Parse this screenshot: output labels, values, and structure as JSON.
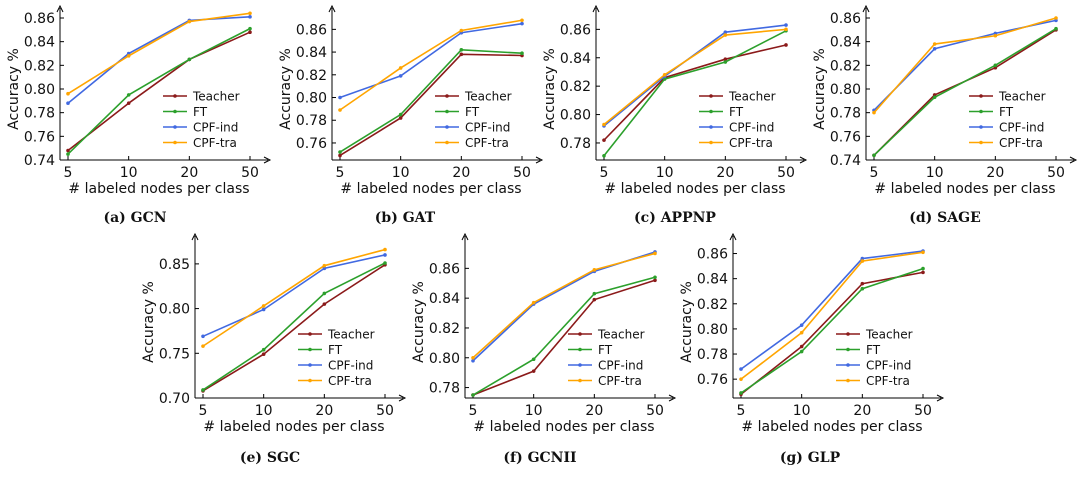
{
  "styles": {
    "series_colors": {
      "Teacher": "#8b1a1a",
      "FT": "#2ca02c",
      "CPF-ind": "#4169e1",
      "CPF-tra": "#ffa500"
    },
    "axis_color": "#000000"
  },
  "legend_labels": [
    "Teacher",
    "FT",
    "CPF-ind",
    "CPF-tra"
  ],
  "chart_data": [
    {
      "id": "a",
      "caption": "(a) GCN",
      "type": "line",
      "xlabel": "# labeled nodes per class",
      "ylabel": "Accuracy %",
      "categories": [
        "5",
        "10",
        "20",
        "50"
      ],
      "ylim": [
        0.74,
        0.86
      ],
      "yticks": [
        0.74,
        0.76,
        0.78,
        0.8,
        0.82,
        0.84,
        0.86
      ],
      "ytick_labels": [
        "0.74",
        "0.76",
        "0.78",
        "0.80",
        "0.82",
        "0.84",
        "0.86"
      ],
      "legend_position": "lower-right",
      "series": [
        {
          "name": "Teacher",
          "values": [
            0.748,
            0.788,
            0.825,
            0.848
          ]
        },
        {
          "name": "FT",
          "values": [
            0.745,
            0.795,
            0.825,
            0.851
          ]
        },
        {
          "name": "CPF-ind",
          "values": [
            0.788,
            0.83,
            0.858,
            0.861
          ]
        },
        {
          "name": "CPF-tra",
          "values": [
            0.796,
            0.828,
            0.857,
            0.864
          ]
        }
      ]
    },
    {
      "id": "b",
      "caption": "(b) GAT",
      "type": "line",
      "xlabel": "# labeled nodes per class",
      "ylabel": "Accuracy %",
      "categories": [
        "5",
        "10",
        "20",
        "50"
      ],
      "ylim": [
        0.745,
        0.87
      ],
      "yticks": [
        0.76,
        0.78,
        0.8,
        0.82,
        0.84,
        0.86
      ],
      "ytick_labels": [
        "0.76",
        "0.78",
        "0.80",
        "0.82",
        "0.84",
        "0.86"
      ],
      "legend_position": "lower-right",
      "series": [
        {
          "name": "Teacher",
          "values": [
            0.749,
            0.782,
            0.838,
            0.837
          ]
        },
        {
          "name": "FT",
          "values": [
            0.752,
            0.785,
            0.842,
            0.839
          ]
        },
        {
          "name": "CPF-ind",
          "values": [
            0.8,
            0.819,
            0.857,
            0.865
          ]
        },
        {
          "name": "CPF-tra",
          "values": [
            0.789,
            0.826,
            0.859,
            0.868
          ]
        }
      ]
    },
    {
      "id": "c",
      "caption": "(c) APPNP",
      "type": "line",
      "xlabel": "# labeled nodes per class",
      "ylabel": "Accuracy %",
      "categories": [
        "5",
        "10",
        "20",
        "50"
      ],
      "ylim": [
        0.768,
        0.868
      ],
      "yticks": [
        0.78,
        0.8,
        0.82,
        0.84,
        0.86
      ],
      "ytick_labels": [
        "0.78",
        "0.80",
        "0.82",
        "0.84",
        "0.86"
      ],
      "legend_position": "lower-right",
      "series": [
        {
          "name": "Teacher",
          "values": [
            0.782,
            0.826,
            0.839,
            0.849
          ]
        },
        {
          "name": "FT",
          "values": [
            0.771,
            0.825,
            0.837,
            0.859
          ]
        },
        {
          "name": "CPF-ind",
          "values": [
            0.792,
            0.827,
            0.858,
            0.863
          ]
        },
        {
          "name": "CPF-tra",
          "values": [
            0.793,
            0.828,
            0.856,
            0.86
          ]
        }
      ]
    },
    {
      "id": "d",
      "caption": "(d) SAGE",
      "type": "line",
      "xlabel": "# labeled nodes per class",
      "ylabel": "Accuracy %",
      "categories": [
        "5",
        "10",
        "20",
        "50"
      ],
      "ylim": [
        0.74,
        0.86
      ],
      "yticks": [
        0.74,
        0.76,
        0.78,
        0.8,
        0.82,
        0.84,
        0.86
      ],
      "ytick_labels": [
        "0.74",
        "0.76",
        "0.78",
        "0.80",
        "0.82",
        "0.84",
        "0.86"
      ],
      "legend_position": "lower-right",
      "series": [
        {
          "name": "Teacher",
          "values": [
            0.744,
            0.795,
            0.818,
            0.85
          ]
        },
        {
          "name": "FT",
          "values": [
            0.744,
            0.793,
            0.82,
            0.851
          ]
        },
        {
          "name": "CPF-ind",
          "values": [
            0.782,
            0.834,
            0.847,
            0.858
          ]
        },
        {
          "name": "CPF-tra",
          "values": [
            0.78,
            0.838,
            0.845,
            0.86
          ]
        }
      ]
    },
    {
      "id": "e",
      "caption": "(e) SGC",
      "type": "line",
      "xlabel": "# labeled nodes per class",
      "ylabel": "Accuracy %",
      "categories": [
        "5",
        "10",
        "20",
        "50"
      ],
      "ylim": [
        0.7,
        0.87
      ],
      "yticks": [
        0.7,
        0.75,
        0.8,
        0.85
      ],
      "ytick_labels": [
        "0.70",
        "0.75",
        "0.80",
        "0.85"
      ],
      "legend_position": "lower-right",
      "series": [
        {
          "name": "Teacher",
          "values": [
            0.708,
            0.749,
            0.805,
            0.849
          ]
        },
        {
          "name": "FT",
          "values": [
            0.709,
            0.754,
            0.817,
            0.851
          ]
        },
        {
          "name": "CPF-ind",
          "values": [
            0.769,
            0.799,
            0.845,
            0.86
          ]
        },
        {
          "name": "CPF-tra",
          "values": [
            0.758,
            0.803,
            0.848,
            0.866
          ]
        }
      ]
    },
    {
      "id": "f",
      "caption": "(f) GCNII",
      "type": "line",
      "xlabel": "# labeled nodes per class",
      "ylabel": "Accuracy %",
      "categories": [
        "5",
        "10",
        "20",
        "50"
      ],
      "ylim": [
        0.773,
        0.875
      ],
      "yticks": [
        0.78,
        0.8,
        0.82,
        0.84,
        0.86
      ],
      "ytick_labels": [
        "0.78",
        "0.80",
        "0.82",
        "0.84",
        "0.86"
      ],
      "legend_position": "lower-right",
      "series": [
        {
          "name": "Teacher",
          "values": [
            0.775,
            0.791,
            0.839,
            0.852
          ]
        },
        {
          "name": "FT",
          "values": [
            0.775,
            0.799,
            0.843,
            0.854
          ]
        },
        {
          "name": "CPF-ind",
          "values": [
            0.798,
            0.836,
            0.858,
            0.871
          ]
        },
        {
          "name": "CPF-tra",
          "values": [
            0.8,
            0.837,
            0.859,
            0.87
          ]
        }
      ]
    },
    {
      "id": "g",
      "caption": "(g) GLP",
      "type": "line",
      "xlabel": "# labeled nodes per class",
      "ylabel": "Accuracy %",
      "categories": [
        "5",
        "10",
        "20",
        "50"
      ],
      "ylim": [
        0.745,
        0.866
      ],
      "yticks": [
        0.76,
        0.78,
        0.8,
        0.82,
        0.84,
        0.86
      ],
      "ytick_labels": [
        "0.76",
        "0.78",
        "0.80",
        "0.82",
        "0.84",
        "0.86"
      ],
      "legend_position": "lower-right",
      "series": [
        {
          "name": "Teacher",
          "values": [
            0.748,
            0.786,
            0.836,
            0.845
          ]
        },
        {
          "name": "FT",
          "values": [
            0.749,
            0.782,
            0.832,
            0.848
          ]
        },
        {
          "name": "CPF-ind",
          "values": [
            0.768,
            0.803,
            0.856,
            0.862
          ]
        },
        {
          "name": "CPF-tra",
          "values": [
            0.76,
            0.797,
            0.854,
            0.861
          ]
        }
      ]
    }
  ]
}
